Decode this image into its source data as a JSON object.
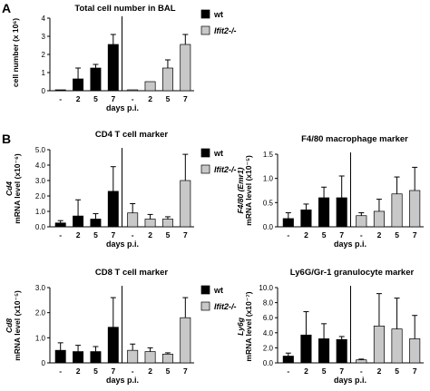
{
  "figure": {
    "panel_labels": [
      "A",
      "B"
    ]
  },
  "colors": {
    "wt": "#000000",
    "ifit2": "#c8c8c8",
    "axis": "#000000"
  },
  "chart_data": [
    {
      "id": "A",
      "type": "bar",
      "title": "Total cell number in BAL",
      "ylabel": "cell number (x 10⁶)",
      "xlabel": "days p.i.",
      "ylim": [
        0,
        4
      ],
      "yticks": [
        "0",
        "1",
        "2",
        "3",
        "4"
      ],
      "categories": [
        "-",
        "2",
        "5",
        "7"
      ],
      "legend_position": "right",
      "series": [
        {
          "name": "wt",
          "values": [
            0.05,
            0.65,
            1.25,
            2.55
          ],
          "errors": [
            0,
            0.6,
            0.2,
            0.55
          ]
        },
        {
          "name": "Ifit2-/-",
          "values": [
            0.05,
            0.5,
            1.25,
            2.55
          ],
          "errors": [
            0,
            0,
            0.45,
            0.55
          ]
        }
      ]
    },
    {
      "id": "CD4",
      "type": "bar",
      "title": "CD4 T cell marker",
      "ylabel_gene": "Cd4",
      "ylabel": "mRNA level (x10⁻⁶)",
      "xlabel": "days p.i.",
      "ylim": [
        0,
        5
      ],
      "yticks": [
        "0.0",
        "1.0",
        "2.0",
        "3.0",
        "4.0",
        "5.0"
      ],
      "categories": [
        "-",
        "2",
        "5",
        "7"
      ],
      "legend_position": "right",
      "series": [
        {
          "name": "wt",
          "values": [
            0.25,
            0.7,
            0.5,
            2.3
          ],
          "errors": [
            0.15,
            1.05,
            0.35,
            1.6
          ]
        },
        {
          "name": "Ifit2-/-",
          "values": [
            0.9,
            0.5,
            0.5,
            3.0
          ],
          "errors": [
            0.6,
            0.3,
            0.15,
            1.7
          ]
        }
      ]
    },
    {
      "id": "F480",
      "type": "bar",
      "title": "F4/80 macrophage marker",
      "ylabel_gene": "F4/80 (Emr1)",
      "ylabel": "mRNA level (x10⁻⁵)",
      "xlabel": "days p.i.",
      "ylim": [
        0,
        1.5
      ],
      "yticks": [
        "0.0",
        "0.5",
        "1.0",
        "1.5"
      ],
      "categories": [
        "-",
        "2",
        "5",
        "7"
      ],
      "series": [
        {
          "name": "wt",
          "values": [
            0.17,
            0.35,
            0.6,
            0.6
          ],
          "errors": [
            0.12,
            0.12,
            0.22,
            0.45
          ]
        },
        {
          "name": "Ifit2-/-",
          "values": [
            0.23,
            0.32,
            0.68,
            0.75
          ],
          "errors": [
            0.06,
            0.25,
            0.35,
            0.48
          ]
        }
      ]
    },
    {
      "id": "CD8",
      "type": "bar",
      "title": "CD8 T cell marker",
      "ylabel_gene": "Cd8",
      "ylabel": "mRNA level (x10⁻⁵)",
      "xlabel": "days p.i.",
      "ylim": [
        0,
        3
      ],
      "yticks": [
        "0",
        "1.0",
        "2.0",
        "3.0"
      ],
      "categories": [
        "-",
        "2",
        "5",
        "7"
      ],
      "legend_position": "right",
      "series": [
        {
          "name": "wt",
          "values": [
            0.5,
            0.45,
            0.45,
            1.42
          ],
          "errors": [
            0.3,
            0.25,
            0.2,
            1.18
          ]
        },
        {
          "name": "Ifit2-/-",
          "values": [
            0.5,
            0.45,
            0.35,
            1.8
          ],
          "errors": [
            0.25,
            0.15,
            0.05,
            0.8
          ]
        }
      ]
    },
    {
      "id": "Ly6g",
      "type": "bar",
      "title": "Ly6G/Gr-1 granulocyte marker",
      "ylabel_gene": "Ly6g",
      "ylabel": "mRNA level (x10⁻⁷)",
      "xlabel": "days p.i.",
      "ylim": [
        0,
        10
      ],
      "yticks": [
        "0.0",
        "2.0",
        "4.0",
        "6.0",
        "8.0",
        "10.0"
      ],
      "categories": [
        "-",
        "2",
        "5",
        "7"
      ],
      "series": [
        {
          "name": "wt",
          "values": [
            0.9,
            3.7,
            3.2,
            3.1
          ],
          "errors": [
            0.4,
            3.1,
            2.0,
            0.4
          ]
        },
        {
          "name": "Ifit2-/-",
          "values": [
            0.4,
            4.9,
            4.5,
            3.2
          ],
          "errors": [
            0.1,
            4.3,
            4.1,
            3.1
          ]
        }
      ]
    }
  ]
}
